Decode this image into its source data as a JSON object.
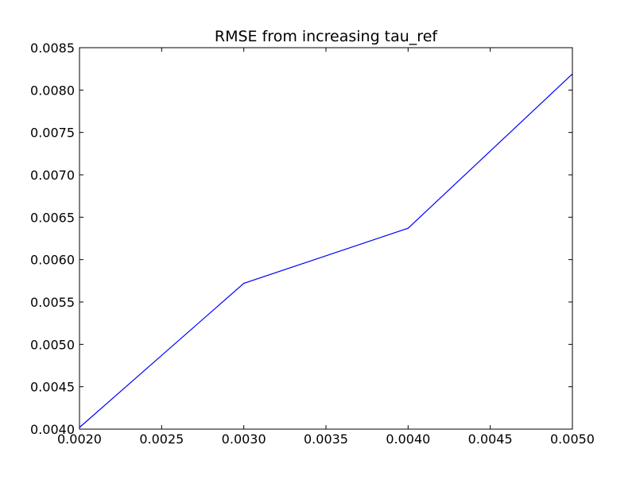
{
  "chart_data": {
    "type": "line",
    "title": "RMSE from increasing tau_ref",
    "xlabel": "",
    "ylabel": "",
    "xlim": [
      0.002,
      0.005
    ],
    "ylim": [
      0.004,
      0.0085
    ],
    "xticks": [
      "0.0020",
      "0.0025",
      "0.0030",
      "0.0035",
      "0.0040",
      "0.0045",
      "0.0050"
    ],
    "yticks": [
      "0.0040",
      "0.0045",
      "0.0050",
      "0.0055",
      "0.0060",
      "0.0065",
      "0.0070",
      "0.0075",
      "0.0080",
      "0.0085"
    ],
    "grid": false,
    "legend": "none",
    "series": [
      {
        "color": "#0000ff",
        "x": [
          0.002,
          0.003,
          0.004,
          0.005
        ],
        "y": [
          0.00402,
          0.00572,
          0.00637,
          0.00819
        ]
      }
    ]
  }
}
